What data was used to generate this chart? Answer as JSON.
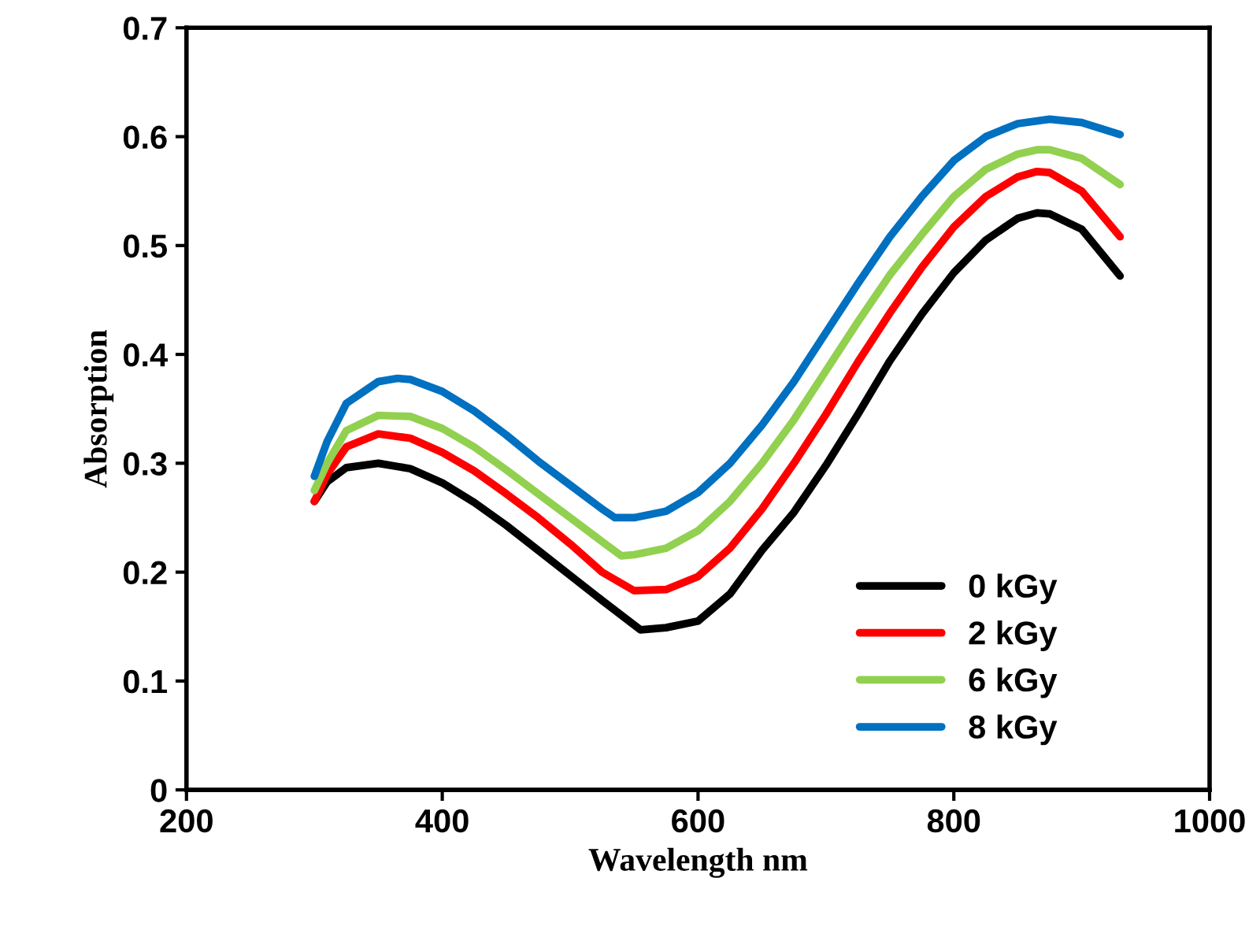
{
  "chart_data": {
    "type": "line",
    "xlabel": "Wavelength nm",
    "ylabel": "Absorption",
    "xlim": [
      200,
      1000
    ],
    "xticks": [
      200,
      400,
      600,
      800,
      1000
    ],
    "ylim": [
      0,
      0.7
    ],
    "yticks": [
      {
        "value": 0,
        "label": "0"
      },
      0.1,
      0.2,
      0.3,
      0.4,
      0.5,
      0.6,
      0.7
    ],
    "grid": false,
    "legend": "bottom right",
    "marker": "none",
    "line_style": "solid",
    "series": [
      {
        "name": "0 kGy",
        "color": "#000000",
        "x": [
          300,
          310,
          325,
          350,
          375,
          400,
          425,
          450,
          475,
          500,
          525,
          555,
          575,
          600,
          625,
          650,
          675,
          700,
          725,
          750,
          775,
          800,
          825,
          850,
          865,
          875,
          900,
          930
        ],
        "values": [
          0.265,
          0.283,
          0.296,
          0.3,
          0.295,
          0.282,
          0.264,
          0.243,
          0.22,
          0.197,
          0.174,
          0.147,
          0.149,
          0.155,
          0.18,
          0.22,
          0.255,
          0.298,
          0.345,
          0.394,
          0.437,
          0.475,
          0.505,
          0.525,
          0.53,
          0.529,
          0.515,
          0.472
        ]
      },
      {
        "name": "2 kGy",
        "color": "#ff0000",
        "x": [
          300,
          310,
          325,
          350,
          375,
          400,
          425,
          450,
          475,
          500,
          525,
          550,
          575,
          600,
          625,
          650,
          675,
          700,
          725,
          750,
          775,
          800,
          825,
          850,
          865,
          875,
          900,
          930
        ],
        "values": [
          0.265,
          0.29,
          0.315,
          0.327,
          0.323,
          0.31,
          0.293,
          0.272,
          0.25,
          0.226,
          0.2,
          0.183,
          0.184,
          0.196,
          0.222,
          0.258,
          0.3,
          0.345,
          0.393,
          0.438,
          0.48,
          0.517,
          0.545,
          0.563,
          0.568,
          0.567,
          0.55,
          0.508
        ]
      },
      {
        "name": "6 kGy",
        "color": "#92d050",
        "x": [
          300,
          310,
          325,
          350,
          375,
          400,
          425,
          450,
          475,
          500,
          525,
          540,
          550,
          575,
          600,
          625,
          650,
          675,
          700,
          725,
          750,
          775,
          800,
          825,
          850,
          865,
          875,
          900,
          930
        ],
        "values": [
          0.275,
          0.3,
          0.33,
          0.344,
          0.343,
          0.332,
          0.315,
          0.294,
          0.272,
          0.25,
          0.228,
          0.215,
          0.216,
          0.222,
          0.238,
          0.265,
          0.3,
          0.34,
          0.385,
          0.43,
          0.473,
          0.51,
          0.545,
          0.57,
          0.584,
          0.588,
          0.588,
          0.58,
          0.556
        ]
      },
      {
        "name": "8 kGy",
        "color": "#0070c0",
        "x": [
          300,
          310,
          325,
          350,
          365,
          375,
          400,
          425,
          450,
          475,
          500,
          525,
          535,
          550,
          575,
          600,
          625,
          650,
          675,
          700,
          725,
          750,
          775,
          800,
          825,
          850,
          875,
          900,
          930
        ],
        "values": [
          0.288,
          0.32,
          0.355,
          0.375,
          0.378,
          0.377,
          0.366,
          0.348,
          0.326,
          0.302,
          0.28,
          0.258,
          0.25,
          0.25,
          0.256,
          0.273,
          0.3,
          0.335,
          0.375,
          0.42,
          0.465,
          0.508,
          0.545,
          0.578,
          0.6,
          0.612,
          0.616,
          0.613,
          0.602
        ]
      }
    ]
  }
}
